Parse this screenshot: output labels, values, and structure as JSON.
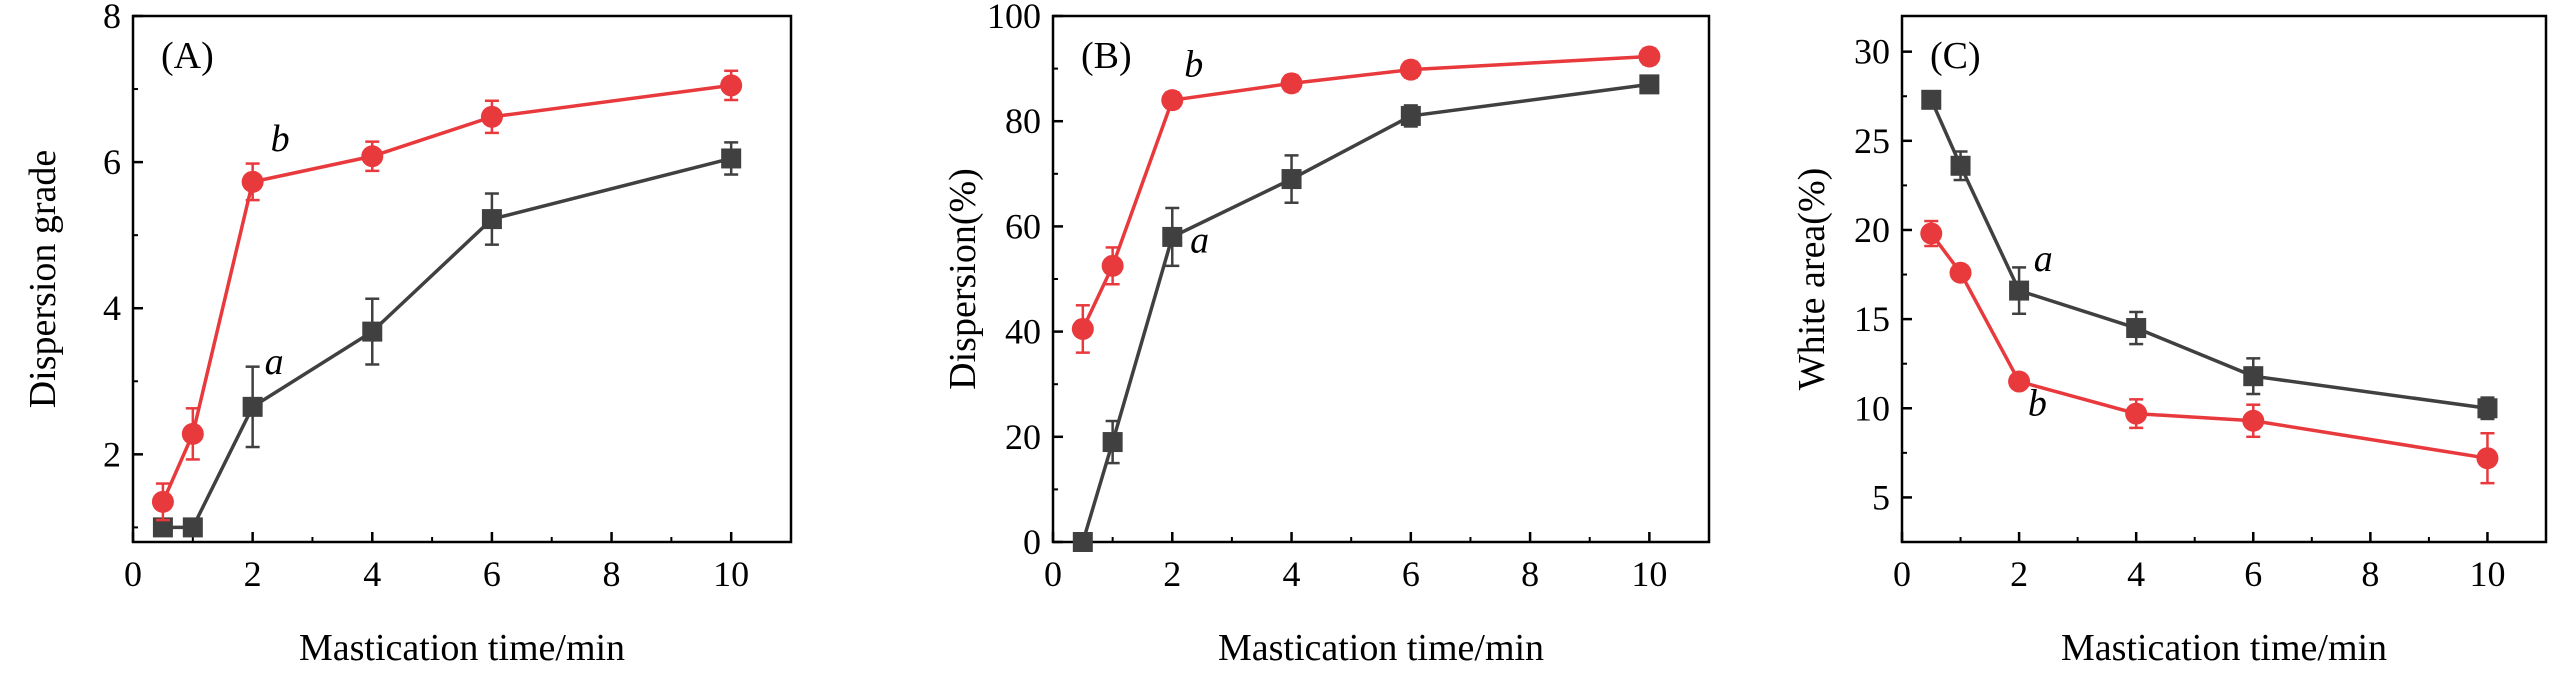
{
  "chart_data": [
    {
      "type": "line",
      "panel_label": "(A)",
      "xlabel": "Mastication time/min",
      "ylabel": "Dispersion grade",
      "xlim": [
        0,
        11
      ],
      "ylim": [
        0.8,
        8
      ],
      "xticks": [
        0,
        2,
        4,
        6,
        8,
        10
      ],
      "xtick_labels": [
        "0",
        "2",
        "4",
        "6",
        "8",
        "10"
      ],
      "yticks": [
        2,
        4,
        6,
        8
      ],
      "ytick_labels": [
        "2",
        "4",
        "6",
        "8"
      ],
      "series": [
        {
          "name": "a",
          "color": "#404040",
          "marker": "square",
          "x": [
            0.5,
            1,
            2,
            4,
            6,
            10
          ],
          "y": [
            1.0,
            1.0,
            2.65,
            3.68,
            5.22,
            6.05
          ],
          "err": [
            0,
            0,
            0.55,
            0.45,
            0.35,
            0.22
          ]
        },
        {
          "name": "b",
          "color": "#e8393d",
          "marker": "circle",
          "x": [
            0.5,
            1,
            2,
            4,
            6,
            10
          ],
          "y": [
            1.35,
            2.28,
            5.73,
            6.08,
            6.62,
            7.05
          ],
          "err": [
            0.25,
            0.35,
            0.25,
            0.2,
            0.22,
            0.2
          ]
        }
      ],
      "annotations": [
        {
          "text": "a",
          "x": 2.2,
          "y": 3.1
        },
        {
          "text": "b",
          "x": 2.3,
          "y": 6.15
        }
      ]
    },
    {
      "type": "line",
      "panel_label": "(B)",
      "xlabel": "Mastication time/min",
      "ylabel": "Dispersion(%)",
      "xlim": [
        0,
        11
      ],
      "ylim": [
        0,
        100
      ],
      "xticks": [
        0,
        2,
        4,
        6,
        8,
        10
      ],
      "xtick_labels": [
        "0",
        "2",
        "4",
        "6",
        "8",
        "10"
      ],
      "yticks": [
        0,
        20,
        40,
        60,
        80,
        100
      ],
      "ytick_labels": [
        "0",
        "20",
        "40",
        "60",
        "80",
        "100"
      ],
      "series": [
        {
          "name": "a",
          "color": "#404040",
          "marker": "square",
          "x": [
            0.5,
            1,
            2,
            4,
            6,
            10
          ],
          "y": [
            0,
            19,
            58,
            69,
            81,
            87
          ],
          "err": [
            0,
            4,
            5.5,
            4.5,
            2,
            1.5
          ]
        },
        {
          "name": "b",
          "color": "#e8393d",
          "marker": "circle",
          "x": [
            0.5,
            1,
            2,
            4,
            6,
            10
          ],
          "y": [
            40.5,
            52.5,
            84,
            87.2,
            89.8,
            92.3
          ],
          "err": [
            4.5,
            3.5,
            1.5,
            1.5,
            1.5,
            1.5
          ]
        }
      ],
      "annotations": [
        {
          "text": "a",
          "x": 2.3,
          "y": 55
        },
        {
          "text": "b",
          "x": 2.2,
          "y": 88.5
        }
      ]
    },
    {
      "type": "line",
      "panel_label": "(C)",
      "xlabel": "Mastication time/min",
      "ylabel": "White area(%)",
      "xlim": [
        0,
        11
      ],
      "ylim": [
        2.5,
        32
      ],
      "xticks": [
        0,
        2,
        4,
        6,
        8,
        10
      ],
      "xtick_labels": [
        "0",
        "2",
        "4",
        "6",
        "8",
        "10"
      ],
      "yticks": [
        5,
        10,
        15,
        20,
        25,
        30
      ],
      "ytick_labels": [
        "5",
        "10",
        "15",
        "20",
        "25",
        "30"
      ],
      "series": [
        {
          "name": "a",
          "color": "#404040",
          "marker": "square",
          "x": [
            0.5,
            1,
            2,
            4,
            6,
            10
          ],
          "y": [
            27.3,
            23.6,
            16.6,
            14.5,
            11.8,
            10.0
          ],
          "err": [
            0.4,
            0.8,
            1.3,
            0.9,
            1.0,
            0.6
          ]
        },
        {
          "name": "b",
          "color": "#e8393d",
          "marker": "circle",
          "x": [
            0.5,
            1,
            2,
            4,
            6,
            10
          ],
          "y": [
            19.8,
            17.6,
            11.5,
            9.7,
            9.3,
            7.2
          ],
          "err": [
            0.7,
            0.4,
            0.3,
            0.8,
            0.9,
            1.4
          ]
        }
      ],
      "annotations": [
        {
          "text": "a",
          "x": 2.25,
          "y": 17.7
        },
        {
          "text": "b",
          "x": 2.15,
          "y": 9.6
        }
      ]
    }
  ]
}
